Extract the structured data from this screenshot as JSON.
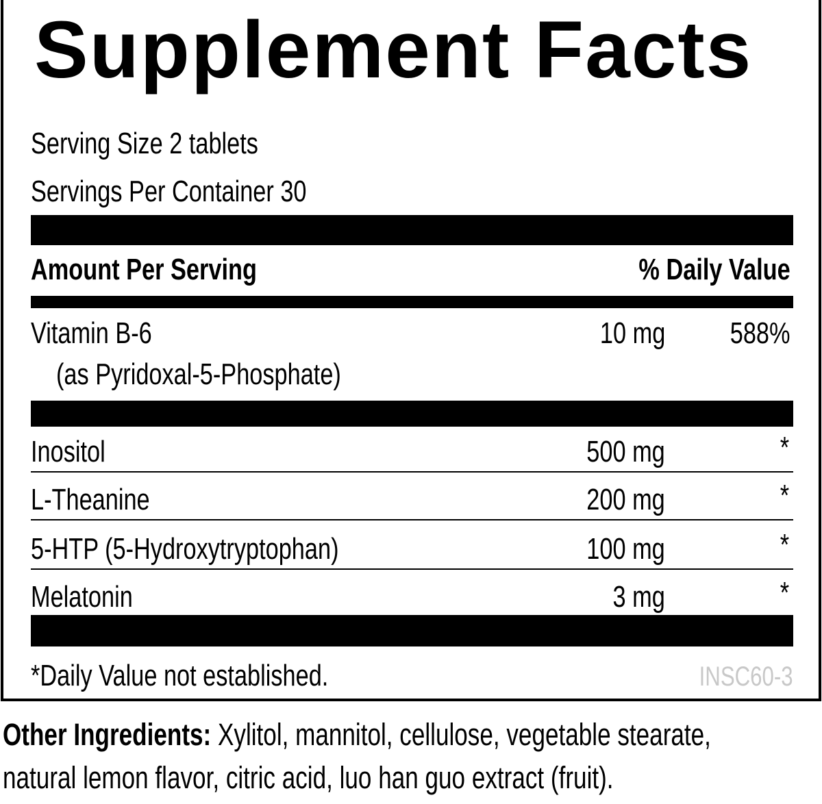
{
  "title": "Supplement Facts",
  "serving_size": "Serving Size 2 tablets",
  "servings_per_container": "Servings Per Container 30",
  "header": {
    "amount": "Amount Per Serving",
    "dv": "% Daily Value"
  },
  "vitamin": {
    "name": "Vitamin B-6",
    "form": "(as Pyridoxal-5-Phosphate)",
    "amount": "10 mg",
    "dv": "588%"
  },
  "ingredients": [
    {
      "name": "Inositol",
      "amount": "500 mg",
      "dv": "*"
    },
    {
      "name": "L-Theanine",
      "amount": "200 mg",
      "dv": "*"
    },
    {
      "name": "5-HTP (5-Hydroxytryptophan)",
      "amount": "100 mg",
      "dv": "*"
    },
    {
      "name": "Melatonin",
      "amount": "3 mg",
      "dv": "*"
    }
  ],
  "footnote": "*Daily Value not established.",
  "code": "INSC60-3",
  "code_color": "#c8c8c8",
  "other": {
    "label": "Other Ingredients:",
    "line1": " Xylitol, mannitol, cellulose, vegetable stearate,",
    "line2": "natural lemon flavor, citric acid, luo han guo extract (fruit)."
  }
}
